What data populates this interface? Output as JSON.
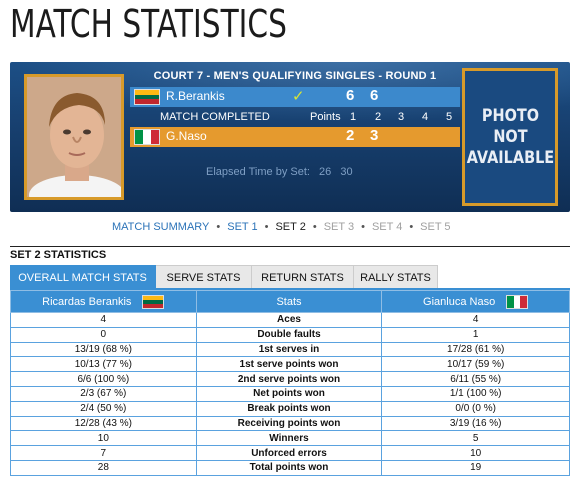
{
  "page": {
    "title": "MATCH STATISTICS"
  },
  "match": {
    "court_title": "COURT 7 - MEN'S QUALIFYING SINGLES - ROUND 1",
    "status": "MATCH COMPLETED",
    "points_label": "Points",
    "set_headers": [
      "1",
      "2",
      "3",
      "4",
      "5"
    ],
    "player1": {
      "name": "R.Berankis",
      "flag": "lithuania",
      "winner_icon": "✓",
      "sets": [
        "6",
        "6"
      ]
    },
    "player2": {
      "name": "G.Naso",
      "flag": "italy",
      "sets": [
        "2",
        "3"
      ]
    },
    "elapsed_label": "Elapsed Time by Set:",
    "elapsed_times": [
      "26",
      "30"
    ],
    "photo_na": [
      "PHOTO",
      "NOT",
      "AVAILABLE"
    ]
  },
  "set_nav": {
    "items": [
      {
        "label": "MATCH SUMMARY",
        "state": "link"
      },
      {
        "label": "SET 1",
        "state": "link"
      },
      {
        "label": "SET 2",
        "state": "current"
      },
      {
        "label": "SET 3",
        "state": "disabled"
      },
      {
        "label": "SET 4",
        "state": "disabled"
      },
      {
        "label": "SET 5",
        "state": "disabled"
      }
    ],
    "separator": "•"
  },
  "section_title": "SET 2 STATISTICS",
  "tabs": [
    {
      "label": "OVERALL MATCH STATS",
      "active": true
    },
    {
      "label": "SERVE STATS",
      "active": false
    },
    {
      "label": "RETURN STATS",
      "active": false
    },
    {
      "label": "RALLY STATS",
      "active": false
    }
  ],
  "stats_table": {
    "headers": {
      "player1": "Ricardas Berankis",
      "stats": "Stats",
      "player2": "Gianluca Naso"
    },
    "rows": [
      {
        "p1": "4",
        "stat": "Aces",
        "p2": "4"
      },
      {
        "p1": "0",
        "stat": "Double faults",
        "p2": "1"
      },
      {
        "p1": "13/19 (68 %)",
        "stat": "1st serves in",
        "p2": "17/28 (61 %)"
      },
      {
        "p1": "10/13 (77 %)",
        "stat": "1st serve points won",
        "p2": "10/17 (59 %)"
      },
      {
        "p1": "6/6 (100 %)",
        "stat": "2nd serve points won",
        "p2": "6/11 (55 %)"
      },
      {
        "p1": "2/3 (67 %)",
        "stat": "Net points won",
        "p2": "1/1 (100 %)"
      },
      {
        "p1": "2/4 (50 %)",
        "stat": "Break points won",
        "p2": "0/0 (0 %)"
      },
      {
        "p1": "12/28 (43 %)",
        "stat": "Receiving points won",
        "p2": "3/19 (16 %)"
      },
      {
        "p1": "10",
        "stat": "Winners",
        "p2": "5"
      },
      {
        "p1": "7",
        "stat": "Unforced errors",
        "p2": "10"
      },
      {
        "p1": "28",
        "stat": "Total points won",
        "p2": "19"
      }
    ]
  },
  "colors": {
    "scoreboard_bg": "#173f6e",
    "player1_bar": "#3c89cc",
    "player2_bar": "#e59a2e",
    "accent_blue": "#3a8fd3",
    "frame_gold": "#d79a2a",
    "winner_check": "#d8e636"
  }
}
